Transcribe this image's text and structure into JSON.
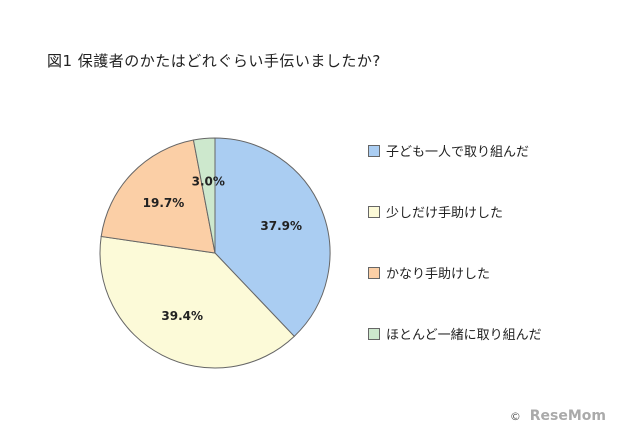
{
  "chart_data": {
    "type": "pie",
    "title": "図1 保護者のかたはどれぐらい手伝いましたか?",
    "categories": [
      "子ども一人で取り組んだ",
      "少しだけ手助けした",
      "かなり手助けした",
      "ほとんど一緒に取り組んだ"
    ],
    "values": [
      37.9,
      39.4,
      19.7,
      3.0
    ],
    "value_labels": [
      "37.9%",
      "39.4%",
      "19.7%",
      "3.0%"
    ],
    "colors": [
      "#aacdf2",
      "#fcfad8",
      "#fbcfa6",
      "#cde8cd"
    ],
    "legend_position": "right"
  },
  "watermark": {
    "copyright": "©",
    "brand": "ReseMom"
  }
}
